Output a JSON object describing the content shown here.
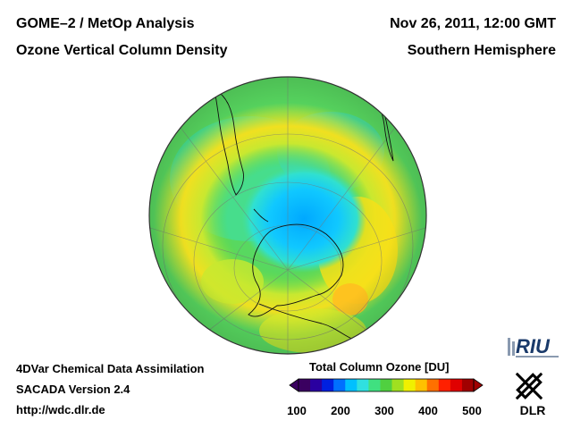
{
  "header": {
    "title_left": "GOME–2 / MetOp Analysis",
    "subtitle_left": "Ozone Vertical Column Density",
    "title_right": "Nov 26, 2011, 12:00 GMT",
    "subtitle_right": "Southern Hemisphere"
  },
  "footer": {
    "line1": "4DVar Chemical Data Assimilation",
    "line2": "SACADA Version 2.4",
    "line3": "http://wdc.dlr.de"
  },
  "colorbar": {
    "title": "Total Column Ozone [DU]",
    "ticks": [
      "100",
      "200",
      "300",
      "400",
      "500"
    ],
    "colors": [
      "#3a0060",
      "#2a00a0",
      "#0020e0",
      "#0070ff",
      "#00c0ff",
      "#30e0e0",
      "#40e080",
      "#50d040",
      "#a0e020",
      "#f0f000",
      "#ffc000",
      "#ff7000",
      "#ff2000",
      "#e00000",
      "#a00000"
    ]
  },
  "map": {
    "projection": "Orthographic, South Pole view",
    "ozone_hole_center_du": 220,
    "background_du": 300,
    "collar_max_du": 380
  },
  "logos": {
    "riu": "RIU",
    "dlr": "DLR"
  }
}
